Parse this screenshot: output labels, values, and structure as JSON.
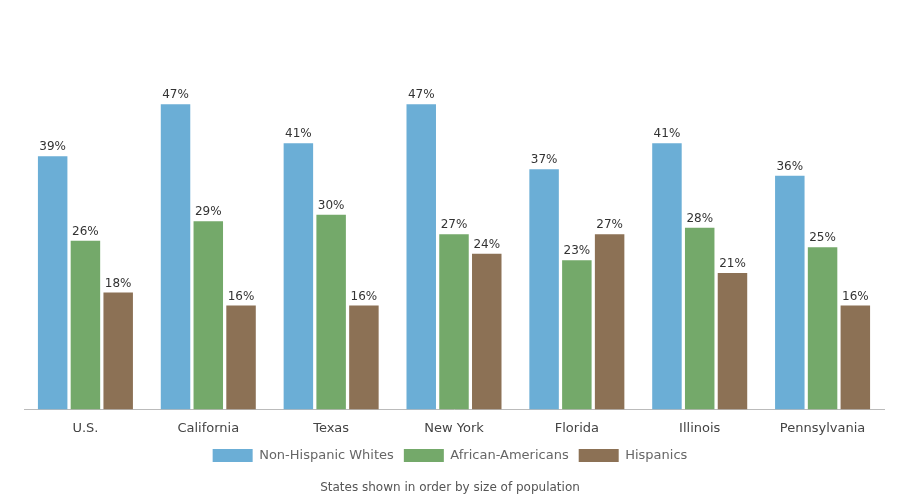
{
  "chart_data": {
    "type": "bar",
    "categories": [
      "U.S.",
      "California",
      "Texas",
      "New York",
      "Florida",
      "Illinois",
      "Pennsylvania"
    ],
    "series": [
      {
        "name": "Non-Hispanic Whites",
        "color": "#6baed6",
        "values": [
          39,
          47,
          41,
          47,
          37,
          41,
          36
        ],
        "value_labels": [
          "39%",
          "47%",
          "41%",
          "47%",
          "37%",
          "41%",
          "36%"
        ]
      },
      {
        "name": "African-Americans",
        "color": "#74a96a",
        "values": [
          26,
          29,
          30,
          27,
          23,
          28,
          25
        ],
        "value_labels": [
          "26%",
          "29%",
          "30%",
          "27%",
          "23%",
          "28%",
          "25%"
        ]
      },
      {
        "name": "Hispanics",
        "color": "#8c7155",
        "values": [
          18,
          16,
          16,
          24,
          27,
          21,
          16
        ],
        "value_labels": [
          "18%",
          "16%",
          "16%",
          "24%",
          "27%",
          "21%",
          "16%"
        ]
      }
    ],
    "annotations": [
      "States shown in order by size of population"
    ],
    "ylim": [
      0,
      60
    ],
    "grid": false,
    "legend": "bottom",
    "data_labels": true,
    "tick_labels": "x"
  }
}
